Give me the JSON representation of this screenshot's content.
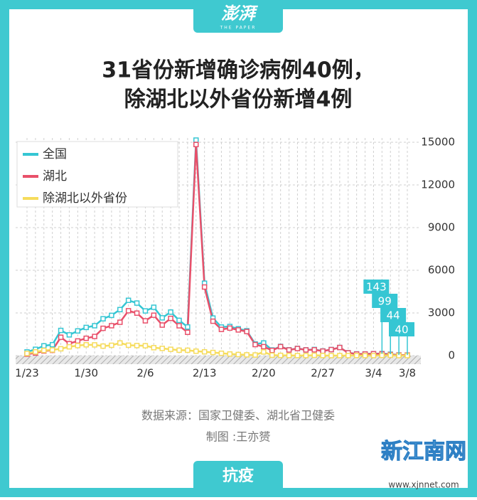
{
  "header": {
    "logo": "澎湃",
    "logo_sub": "THE PAPER"
  },
  "footer": {
    "source": "数据来源：国家卫健委、湖北省卫健委",
    "credit": "制图 :王亦赟",
    "tag": "抗疫",
    "watermark": "新江南网",
    "watermark_url": "www.xjnnet.com"
  },
  "chart_data": {
    "type": "line",
    "title": [
      "31省份新增确诊病例40例，",
      "除湖北以外省份新增4例"
    ],
    "categories": [
      "1/23",
      null,
      null,
      null,
      null,
      null,
      null,
      "1/30",
      null,
      null,
      null,
      null,
      null,
      null,
      "2/6",
      null,
      null,
      null,
      null,
      null,
      null,
      "2/13",
      null,
      null,
      null,
      null,
      null,
      null,
      "2/20",
      null,
      null,
      null,
      null,
      null,
      null,
      "2/27",
      null,
      null,
      null,
      null,
      null,
      "3/4",
      null,
      null,
      null,
      "3/8"
    ],
    "series": [
      {
        "name": "全国",
        "color": "#35c6d3",
        "values": [
          259,
          444,
          688,
          769,
          1771,
          1459,
          1737,
          1981,
          2102,
          2590,
          2829,
          3235,
          3887,
          3694,
          3143,
          3399,
          2656,
          3062,
          2478,
          2015,
          15152,
          5090,
          2641,
          2009,
          2048,
          1886,
          1749,
          820,
          889,
          397,
          648,
          409,
          508,
          406,
          433,
          327,
          427,
          573,
          202,
          125,
          119,
          139,
          143,
          99,
          44,
          40
        ],
        "value_labels": [
          null,
          null,
          null,
          null,
          null,
          null,
          null,
          null,
          null,
          null,
          null,
          null,
          null,
          null,
          null,
          null,
          null,
          null,
          null,
          null,
          null,
          null,
          null,
          null,
          null,
          null,
          null,
          null,
          null,
          null,
          null,
          null,
          null,
          null,
          null,
          null,
          null,
          null,
          null,
          null,
          null,
          null,
          "143",
          "99",
          "44",
          "40"
        ]
      },
      {
        "name": "湖北",
        "color": "#e9506a",
        "values": [
          105,
          180,
          323,
          371,
          1291,
          840,
          1032,
          1220,
          1347,
          1921,
          2103,
          2345,
          3156,
          2987,
          2447,
          2841,
          2147,
          2618,
          2097,
          1638,
          14840,
          4823,
          2420,
          1843,
          1933,
          1807,
          1693,
          775,
          631,
          366,
          630,
          398,
          499,
          401,
          409,
          318,
          423,
          570,
          196,
          114,
          115,
          134,
          126,
          74,
          41,
          36
        ]
      },
      {
        "name": "除湖北以外省份",
        "color": "#f6dc5c",
        "values": [
          154,
          264,
          365,
          398,
          480,
          619,
          705,
          761,
          755,
          669,
          726,
          890,
          731,
          707,
          696,
          558,
          509,
          444,
          381,
          377,
          312,
          267,
          221,
          166,
          115,
          79,
          56,
          45,
          258,
          31,
          18,
          11,
          9,
          5,
          24,
          9,
          4,
          3,
          6,
          11,
          4,
          5,
          17,
          25,
          3,
          4
        ]
      }
    ],
    "ylim": [
      -600,
      15300
    ],
    "yticks": [
      0,
      3000,
      6000,
      9000,
      12000,
      15000
    ],
    "grid": true,
    "legend": "upper left",
    "y_axis_side": "right"
  }
}
